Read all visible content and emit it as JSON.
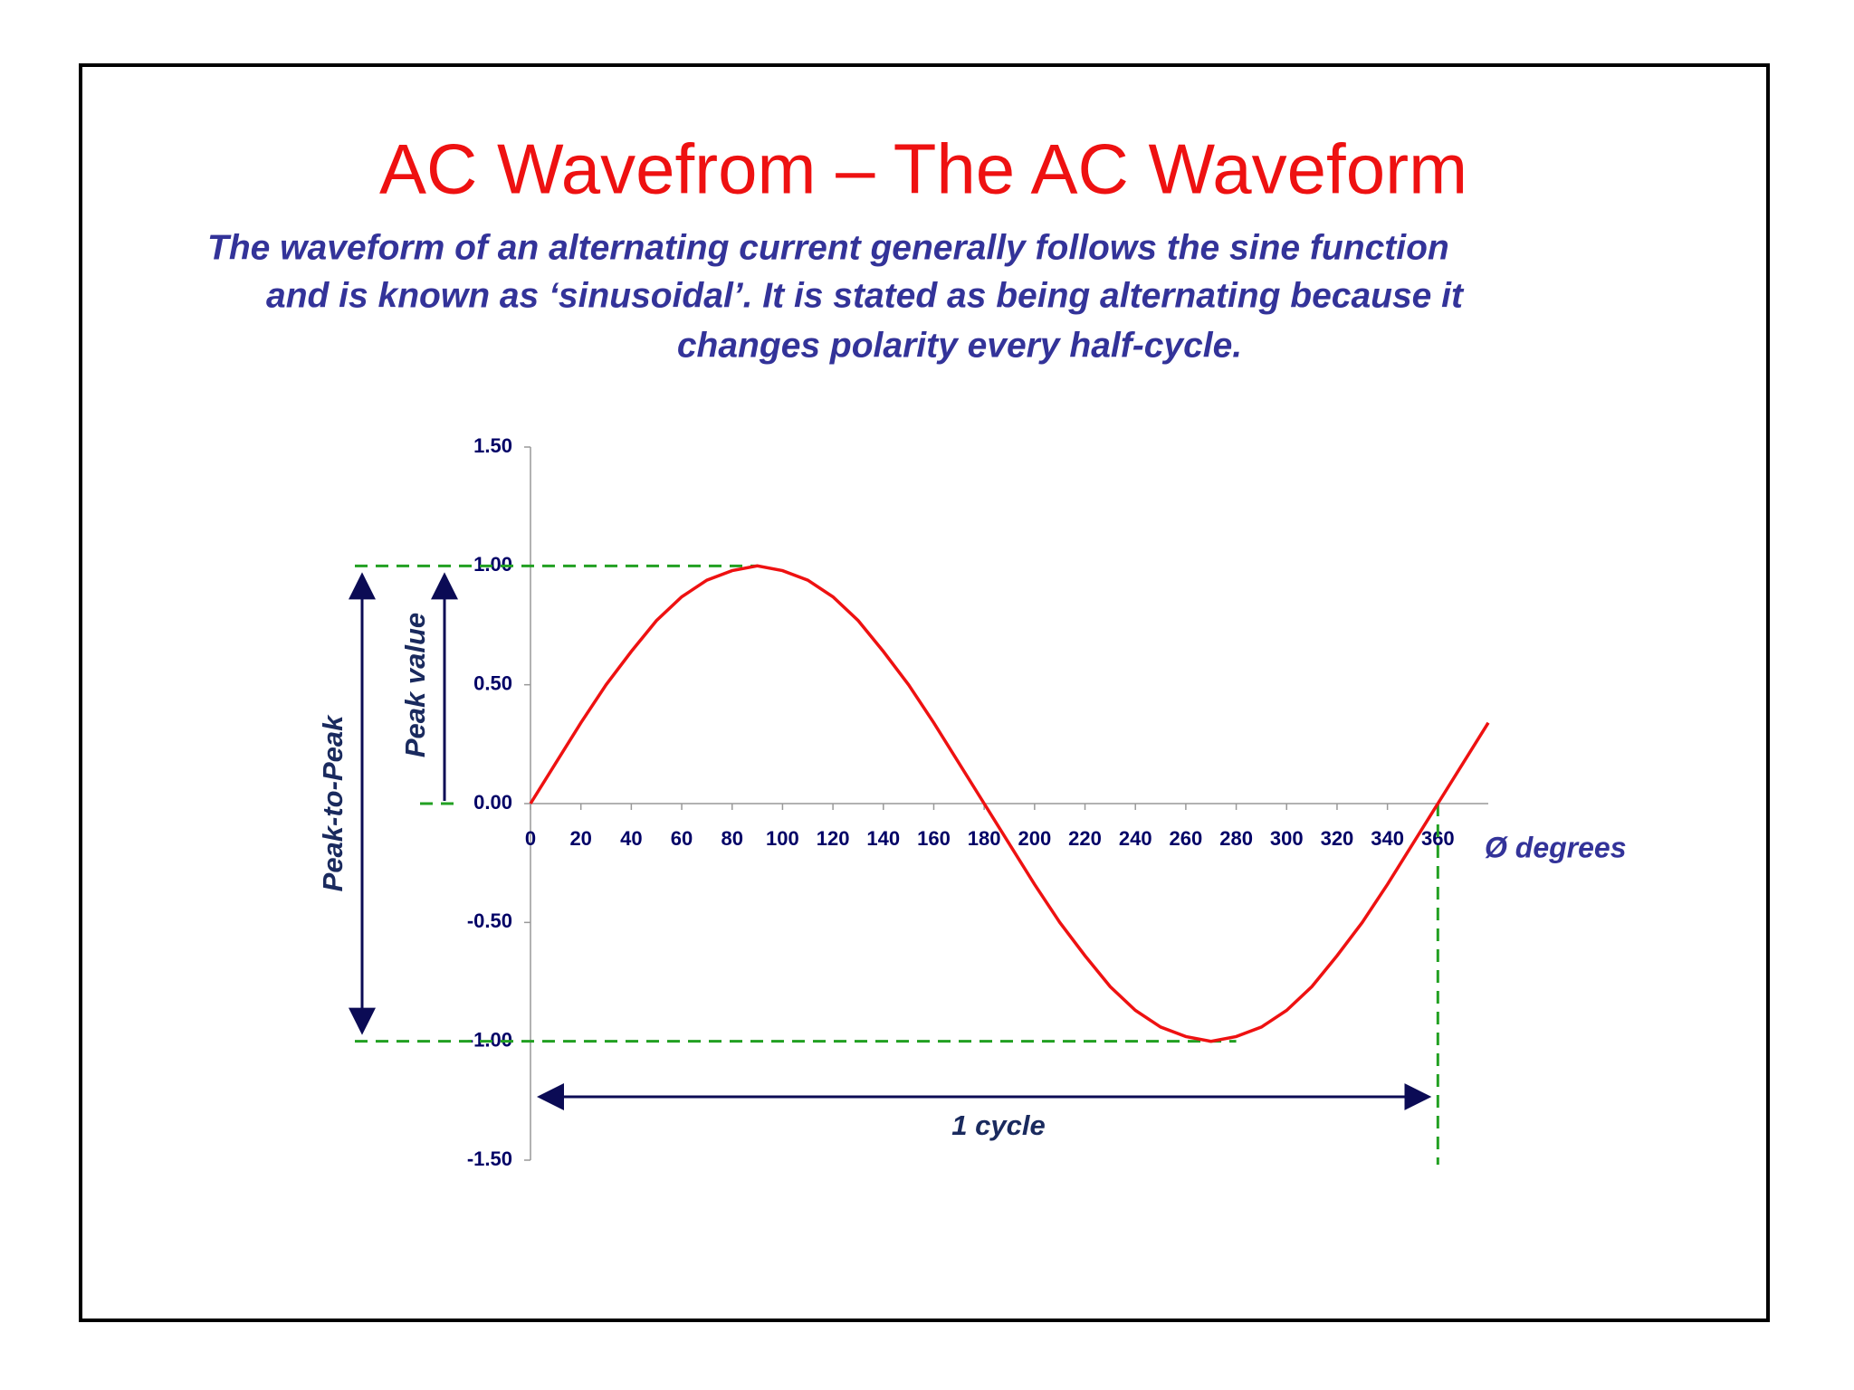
{
  "chart_data": {
    "type": "line",
    "title": "AC Wavefrom – The AC Waveform",
    "subtitle": [
      "The waveform of an alternating current generally follows the sine function",
      "and is known as ‘sinusoidal’. It is stated as being alternating because it",
      "changes polarity every half-cycle."
    ],
    "x": [
      0,
      10,
      20,
      30,
      40,
      50,
      60,
      70,
      80,
      90,
      100,
      110,
      120,
      130,
      140,
      150,
      160,
      170,
      180,
      190,
      200,
      210,
      220,
      230,
      240,
      250,
      260,
      270,
      280,
      290,
      300,
      310,
      320,
      330,
      340,
      350,
      360,
      370,
      380
    ],
    "series": [
      {
        "color": "#ee1111",
        "values": [
          0,
          0.17,
          0.34,
          0.5,
          0.64,
          0.77,
          0.87,
          0.94,
          0.98,
          1,
          0.98,
          0.94,
          0.87,
          0.77,
          0.64,
          0.5,
          0.34,
          0.17,
          0,
          -0.17,
          -0.34,
          -0.5,
          -0.64,
          -0.77,
          -0.87,
          -0.94,
          -0.98,
          -1,
          -0.98,
          -0.94,
          -0.87,
          -0.77,
          -0.64,
          -0.5,
          -0.34,
          -0.17,
          0,
          0.17,
          0.34
        ]
      }
    ],
    "xlim": [
      0,
      380
    ],
    "xticks": [
      0,
      20,
      40,
      60,
      80,
      100,
      120,
      140,
      160,
      180,
      200,
      220,
      240,
      260,
      280,
      300,
      320,
      340,
      360
    ],
    "ylim": [
      -1.5,
      1.5
    ],
    "yticks": [
      {
        "value": -1.5,
        "label": "-1.50"
      },
      {
        "value": -1,
        "label": "-1.00"
      },
      {
        "value": -0.5,
        "label": "-0.50"
      },
      {
        "value": 0,
        "label": "0.00"
      },
      {
        "value": 0.5,
        "label": "0.50"
      },
      {
        "value": 1,
        "label": "1.00"
      },
      {
        "value": 1.5,
        "label": "1.50"
      }
    ],
    "xlabel": "Ø degrees",
    "annotations": [
      "Peak-to-Peak",
      "Peak value",
      "1 cycle"
    ]
  }
}
